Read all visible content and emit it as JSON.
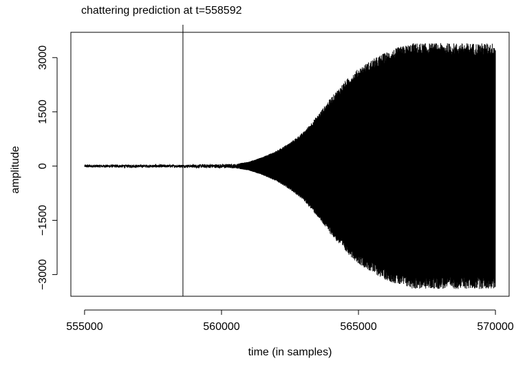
{
  "chart_data": {
    "type": "line",
    "title": "",
    "annotation": {
      "text": "chattering prediction at t=558592",
      "x": 558592
    },
    "xlabel": "time (in samples)",
    "ylabel": "amplitude",
    "xlim": [
      554500,
      570500
    ],
    "ylim": [
      -3600,
      3700
    ],
    "x_ticks": [
      555000,
      560000,
      565000,
      570000
    ],
    "x_tick_labels": [
      "555000",
      "560000",
      "565000",
      "570000"
    ],
    "y_ticks": [
      -3000,
      -1500,
      0,
      1500,
      3000
    ],
    "y_tick_labels": [
      "−3000",
      "−1500",
      "0",
      "1500",
      "3000"
    ],
    "grid": false,
    "legend": "none",
    "series": [
      {
        "x_start": 555000,
        "x_end": 570000,
        "envelope": [
          {
            "x": 555000,
            "amp": 40
          },
          {
            "x": 558592,
            "amp": 40
          },
          {
            "x": 560500,
            "amp": 60
          },
          {
            "x": 561000,
            "amp": 120
          },
          {
            "x": 561500,
            "amp": 250
          },
          {
            "x": 562000,
            "amp": 420
          },
          {
            "x": 562500,
            "amp": 650
          },
          {
            "x": 563000,
            "amp": 950
          },
          {
            "x": 563500,
            "amp": 1400
          },
          {
            "x": 564000,
            "amp": 1900
          },
          {
            "x": 564500,
            "amp": 2350
          },
          {
            "x": 565000,
            "amp": 2700
          },
          {
            "x": 565500,
            "amp": 2950
          },
          {
            "x": 566000,
            "amp": 3150
          },
          {
            "x": 566500,
            "amp": 3300
          },
          {
            "x": 567000,
            "amp": 3400
          },
          {
            "x": 570000,
            "amp": 3400
          }
        ]
      }
    ],
    "colors": {
      "line": "#000000",
      "axis": "#000000",
      "background": "#ffffff"
    }
  }
}
